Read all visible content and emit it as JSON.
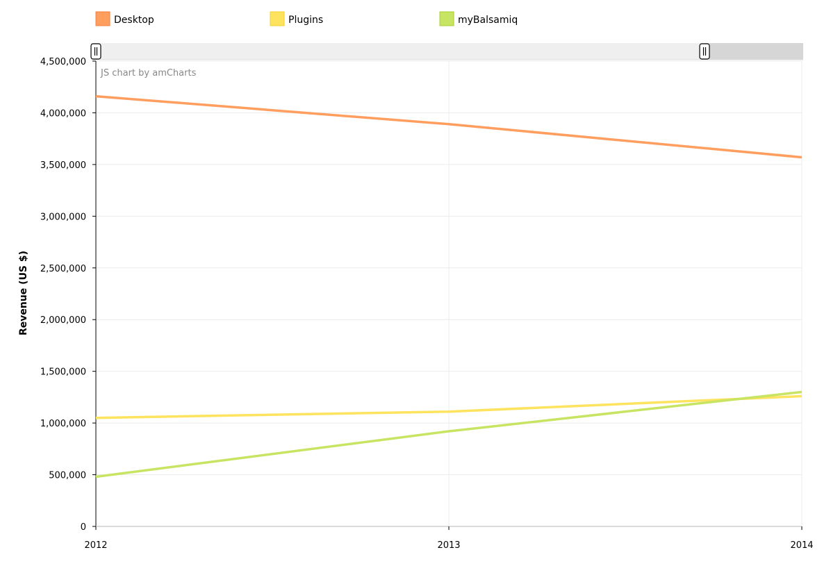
{
  "chart_data": {
    "type": "line",
    "credit": "JS chart by amCharts",
    "ylabel": "Revenue (US $)",
    "xlabel": "",
    "x": [
      2012,
      2013,
      2014
    ],
    "x_tick_labels": [
      "2012",
      "2013",
      "2014"
    ],
    "ylim": [
      0,
      4500000
    ],
    "y_ticks": [
      0,
      500000,
      1000000,
      1500000,
      2000000,
      2500000,
      3000000,
      3500000,
      4000000,
      4500000
    ],
    "y_tick_labels": [
      "0",
      "500,000",
      "1,000,000",
      "1,500,000",
      "2,000,000",
      "2,500,000",
      "3,000,000",
      "3,500,000",
      "4,000,000",
      "4,500,000"
    ],
    "grid": true,
    "legend_position": "top",
    "scrollbar": {
      "visible": true,
      "selected_range": "full"
    },
    "series": [
      {
        "name": "Desktop",
        "color": "#FF9E5E",
        "values": [
          4160000,
          3890000,
          3570000
        ]
      },
      {
        "name": "Plugins",
        "color": "#FDE35E",
        "values": [
          1050000,
          1110000,
          1260000
        ]
      },
      {
        "name": "myBalsamiq",
        "color": "#C8E463",
        "values": [
          480000,
          920000,
          1300000
        ]
      }
    ]
  }
}
